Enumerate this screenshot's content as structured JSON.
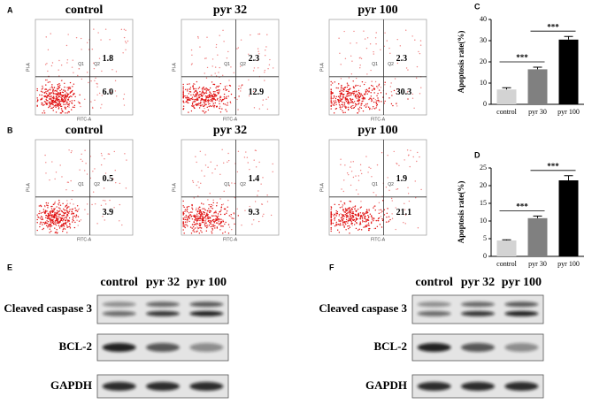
{
  "flow": [
    {
      "label": "A",
      "plots": [
        {
          "title": "control",
          "upper_right": "1.8",
          "lower_right": "6.0"
        },
        {
          "title": "pyr 32",
          "upper_right": "2.3",
          "lower_right": "12.9"
        },
        {
          "title": "pyr 100",
          "upper_right": "2.3",
          "lower_right": "30.3"
        }
      ]
    },
    {
      "label": "B",
      "plots": [
        {
          "title": "control",
          "upper_right": "0.5",
          "lower_right": "3.9"
        },
        {
          "title": "pyr 32",
          "upper_right": "1.4",
          "lower_right": "9.3"
        },
        {
          "title": "pyr 100",
          "upper_right": "1.9",
          "lower_right": "21.1"
        }
      ]
    }
  ],
  "flow_axes": {
    "x_label": "FITC-A",
    "y_label": "PI-A",
    "quadrants": [
      "Q1",
      "Q2"
    ]
  },
  "chart_data": [
    {
      "type": "bar",
      "panel": "C",
      "y_label": "Apoptosis rate(%)",
      "categories": [
        "control",
        "pyr 30",
        "pyr 100"
      ],
      "values": [
        7,
        16.5,
        30.5
      ],
      "errors": [
        0.8,
        1,
        1.5
      ],
      "colors": [
        "#d3d3d3",
        "#808080",
        "#000000"
      ],
      "ylim": [
        0,
        40
      ],
      "yticks": [
        0,
        10,
        20,
        30,
        40
      ],
      "significance": [
        "***",
        "***"
      ]
    },
    {
      "type": "bar",
      "panel": "D",
      "y_label": "Apoptosis rate(%)",
      "categories": [
        "control",
        "pyr 30",
        "pyr 100"
      ],
      "values": [
        4.5,
        10.8,
        21.5
      ],
      "errors": [
        0.2,
        0.6,
        1.3
      ],
      "colors": [
        "#d3d3d3",
        "#808080",
        "#000000"
      ],
      "ylim": [
        0,
        25
      ],
      "yticks": [
        0,
        5,
        10,
        15,
        20,
        25
      ],
      "significance": [
        "***",
        "***"
      ]
    }
  ],
  "blots": [
    {
      "label": "E",
      "columns": [
        "control",
        "pyr 32",
        "pyr 100"
      ],
      "rows": [
        "Cleaved caspase 3",
        "BCL-2",
        "GAPDH"
      ]
    },
    {
      "label": "F",
      "columns": [
        "control",
        "pyr 32",
        "pyr 100"
      ],
      "rows": [
        "Cleaved caspase 3",
        "BCL-2",
        "GAPDH"
      ]
    }
  ]
}
